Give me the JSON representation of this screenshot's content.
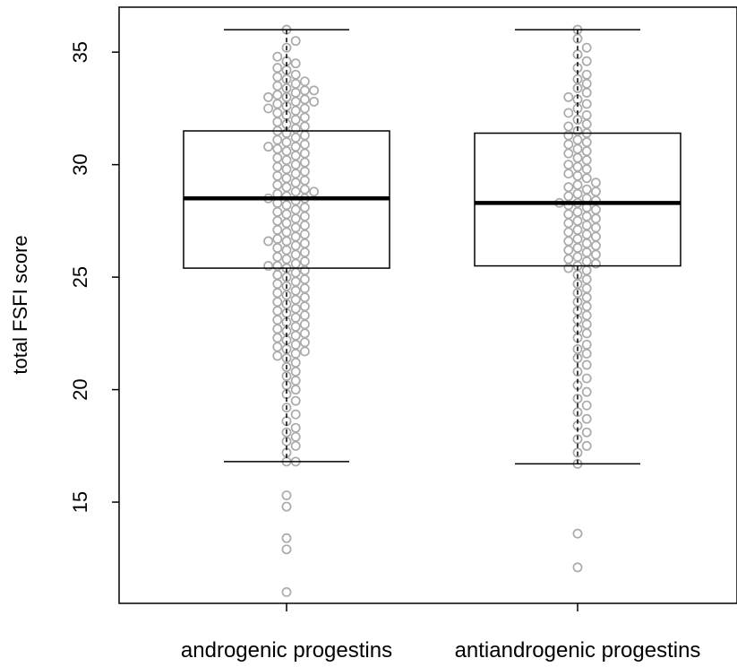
{
  "chart_data": {
    "type": "boxplot",
    "ylabel": "total FSFI score",
    "xlabel": "",
    "ylim": [
      10.5,
      37.0
    ],
    "yticks": [
      15,
      20,
      25,
      30,
      35
    ],
    "grid": false,
    "legend": "none",
    "overlay": "beeswarm points",
    "colors": {
      "box": "#000000",
      "points": "#aaaaaa",
      "background": "#ffffff"
    },
    "categories": [
      "androgenic progestins",
      "antiandrogenic progestins"
    ],
    "boxes": [
      {
        "name": "androgenic progestins",
        "whisker_low": 16.8,
        "q1": 25.4,
        "median": 28.5,
        "q3": 31.5,
        "whisker_high": 36.0,
        "outliers": [
          15.3,
          14.8,
          13.4,
          12.9,
          11.0
        ]
      },
      {
        "name": "antiandrogenic progestins",
        "whisker_low": 16.7,
        "q1": 25.5,
        "median": 28.3,
        "q3": 31.4,
        "whisker_high": 36.0,
        "outliers": [
          13.6,
          12.1
        ]
      }
    ],
    "points": [
      {
        "name": "androgenic progestins",
        "values": [
          36.0,
          35.5,
          35.2,
          34.8,
          34.6,
          34.5,
          34.3,
          34.2,
          34.0,
          33.9,
          33.8,
          33.7,
          33.6,
          33.5,
          33.4,
          33.3,
          33.3,
          33.2,
          33.1,
          33.0,
          33.0,
          32.9,
          32.8,
          32.8,
          32.7,
          32.6,
          32.5,
          32.5,
          32.4,
          32.3,
          32.2,
          32.1,
          32.0,
          31.9,
          31.8,
          31.7,
          31.6,
          31.5,
          31.4,
          31.3,
          31.2,
          31.1,
          31.0,
          30.9,
          30.8,
          30.8,
          30.7,
          30.6,
          30.5,
          30.4,
          30.3,
          30.2,
          30.1,
          30.0,
          29.9,
          29.8,
          29.7,
          29.6,
          29.5,
          29.4,
          29.3,
          29.2,
          29.1,
          29.0,
          28.9,
          28.8,
          28.8,
          28.7,
          28.6,
          28.5,
          28.5,
          28.4,
          28.3,
          28.2,
          28.1,
          28.0,
          27.9,
          27.8,
          27.7,
          27.6,
          27.5,
          27.4,
          27.3,
          27.2,
          27.1,
          27.0,
          26.9,
          26.8,
          26.7,
          26.6,
          26.6,
          26.5,
          26.4,
          26.3,
          26.2,
          26.1,
          26.0,
          25.9,
          25.8,
          25.7,
          25.6,
          25.5,
          25.5,
          25.4,
          25.3,
          25.2,
          25.1,
          25.0,
          24.9,
          24.8,
          24.7,
          24.6,
          24.5,
          24.4,
          24.3,
          24.2,
          24.1,
          24.0,
          23.9,
          23.8,
          23.7,
          23.6,
          23.5,
          23.4,
          23.3,
          23.2,
          23.1,
          23.0,
          22.9,
          22.8,
          22.7,
          22.6,
          22.5,
          22.4,
          22.3,
          22.2,
          22.1,
          22.0,
          21.9,
          21.8,
          21.7,
          21.6,
          21.5,
          21.4,
          21.2,
          21.0,
          20.8,
          20.6,
          20.4,
          20.2,
          20.0,
          19.8,
          19.5,
          19.2,
          18.9,
          18.6,
          18.3,
          18.1,
          17.9,
          17.7,
          17.5,
          17.2,
          16.8,
          16.8,
          15.3,
          14.8,
          13.4,
          12.9,
          11.0
        ]
      },
      {
        "name": "antiandrogenic progestins",
        "values": [
          36.0,
          35.6,
          35.2,
          34.9,
          34.6,
          34.3,
          34.0,
          33.8,
          33.6,
          33.4,
          33.2,
          33.0,
          32.9,
          32.7,
          32.5,
          32.3,
          32.2,
          32.0,
          31.8,
          31.7,
          31.5,
          31.4,
          31.3,
          31.1,
          31.0,
          30.9,
          30.7,
          30.6,
          30.5,
          30.3,
          30.2,
          30.0,
          29.9,
          29.8,
          29.6,
          29.5,
          29.4,
          29.2,
          29.1,
          29.0,
          28.9,
          28.8,
          28.7,
          28.6,
          28.5,
          28.4,
          28.3,
          28.3,
          28.2,
          28.1,
          28.0,
          27.9,
          27.8,
          27.7,
          27.6,
          27.5,
          27.4,
          27.3,
          27.2,
          27.1,
          27.0,
          26.9,
          26.8,
          26.7,
          26.6,
          26.5,
          26.4,
          26.3,
          26.2,
          26.1,
          26.0,
          25.9,
          25.8,
          25.7,
          25.6,
          25.5,
          25.4,
          25.3,
          25.1,
          24.9,
          24.7,
          24.5,
          24.3,
          24.1,
          23.9,
          23.7,
          23.5,
          23.3,
          23.1,
          22.9,
          22.7,
          22.5,
          22.3,
          22.0,
          21.8,
          21.6,
          21.4,
          21.1,
          20.8,
          20.5,
          20.2,
          19.9,
          19.6,
          19.3,
          19.0,
          18.7,
          18.4,
          18.1,
          17.8,
          17.5,
          17.2,
          16.7,
          13.6,
          12.1
        ]
      }
    ]
  }
}
